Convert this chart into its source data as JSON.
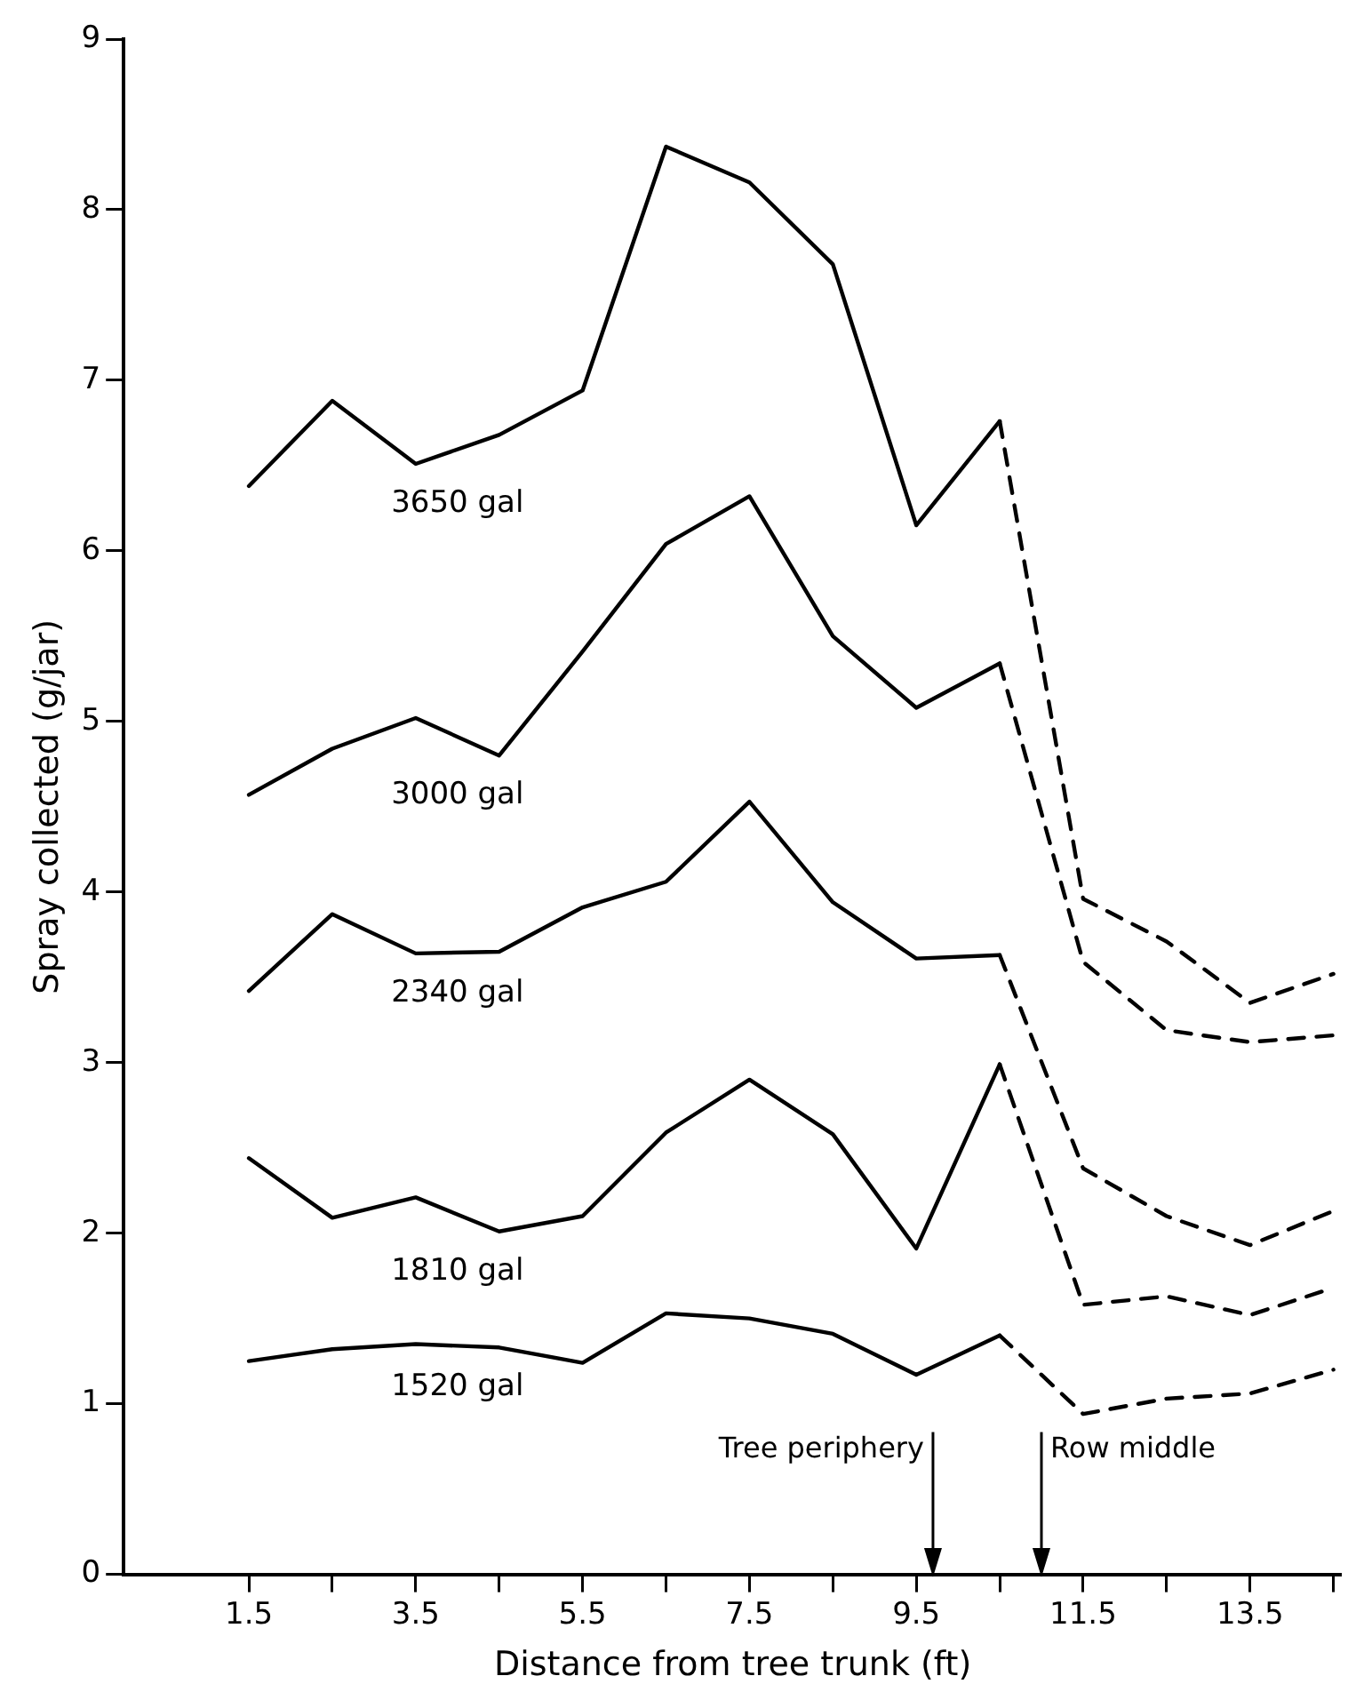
{
  "chart_data": {
    "type": "line",
    "xlabel": "Distance from tree trunk (ft)",
    "ylabel": "Spray collected (g/jar)",
    "xlim": [
      0,
      14.6
    ],
    "ylim": [
      0,
      9
    ],
    "xticks": [
      1.5,
      {
        "value": 2.5,
        "label": null
      },
      3.5,
      {
        "value": 4.5,
        "label": null
      },
      5.5,
      {
        "value": 6.5,
        "label": null
      },
      7.5,
      {
        "value": 8.5,
        "label": null
      },
      9.5,
      {
        "value": 10.5,
        "label": null
      },
      11.5,
      {
        "value": 12.5,
        "label": null
      },
      13.5,
      {
        "value": 14.5,
        "label": null
      }
    ],
    "yticks": [
      0,
      1,
      2,
      3,
      4,
      5,
      6,
      7,
      8,
      9
    ],
    "grid": false,
    "legend": false,
    "marker": "none",
    "series": [
      {
        "name": "3650 gal",
        "color": "#000000",
        "line_style": "solid",
        "x": [
          1.5,
          2.5,
          3.5,
          4.5,
          5.5,
          6.5,
          7.5,
          8.5,
          9.5,
          10.5
        ],
        "values": [
          6.38,
          6.88,
          6.51,
          6.68,
          6.94,
          8.37,
          8.16,
          7.68,
          6.15,
          6.76
        ]
      },
      {
        "color": "#000000",
        "line_style": "dashed",
        "x": [
          10.5,
          11.5,
          12.5,
          13.5,
          14.5
        ],
        "values": [
          6.76,
          3.96,
          3.71,
          3.35,
          3.52
        ]
      },
      {
        "name": "3000 gal",
        "color": "#000000",
        "line_style": "solid",
        "x": [
          1.5,
          2.5,
          3.5,
          4.5,
          5.5,
          6.5,
          7.5,
          8.5,
          9.5,
          10.5
        ],
        "values": [
          4.57,
          4.84,
          5.02,
          4.8,
          5.41,
          6.04,
          6.32,
          5.5,
          5.08,
          5.34
        ]
      },
      {
        "color": "#000000",
        "line_style": "dashed",
        "x": [
          10.5,
          11.5,
          12.5,
          13.5,
          14.5
        ],
        "values": [
          5.34,
          3.59,
          3.19,
          3.12,
          3.16
        ]
      },
      {
        "name": "2340 gal",
        "color": "#000000",
        "line_style": "solid",
        "x": [
          1.5,
          2.5,
          3.5,
          4.5,
          5.5,
          6.5,
          7.5,
          8.5,
          9.5,
          10.5
        ],
        "values": [
          3.42,
          3.87,
          3.64,
          3.65,
          3.91,
          4.06,
          4.53,
          3.94,
          3.61,
          3.63
        ]
      },
      {
        "color": "#000000",
        "line_style": "dashed",
        "x": [
          10.5,
          11.5,
          12.5,
          13.5,
          14.5
        ],
        "values": [
          3.63,
          2.38,
          2.1,
          1.93,
          2.13
        ]
      },
      {
        "name": "1810 gal",
        "color": "#000000",
        "line_style": "solid",
        "x": [
          1.5,
          2.5,
          3.5,
          4.5,
          5.5,
          6.5,
          7.5,
          8.5,
          9.5,
          10.5
        ],
        "values": [
          2.44,
          2.09,
          2.21,
          2.01,
          2.1,
          2.59,
          2.9,
          2.58,
          1.91,
          2.99
        ]
      },
      {
        "color": "#000000",
        "line_style": "dashed",
        "x": [
          10.5,
          11.5,
          12.5,
          13.5,
          14.5
        ],
        "values": [
          2.99,
          1.58,
          1.63,
          1.52,
          1.68
        ]
      },
      {
        "name": "1520 gal",
        "color": "#000000",
        "line_style": "solid",
        "x": [
          1.5,
          2.5,
          3.5,
          4.5,
          5.5,
          6.5,
          7.5,
          8.5,
          9.5,
          10.5
        ],
        "values": [
          1.25,
          1.32,
          1.35,
          1.33,
          1.24,
          1.53,
          1.5,
          1.41,
          1.17,
          1.4
        ]
      },
      {
        "color": "#000000",
        "line_style": "dashed",
        "x": [
          10.5,
          11.5,
          12.5,
          13.5,
          14.5
        ],
        "values": [
          1.4,
          0.94,
          1.03,
          1.06,
          1.2
        ]
      }
    ],
    "ref_lines": [
      {
        "axis": "x",
        "value": 9.7,
        "label": "Tree periphery"
      },
      {
        "axis": "x",
        "value": 11.0,
        "label": "Row middle"
      }
    ]
  }
}
